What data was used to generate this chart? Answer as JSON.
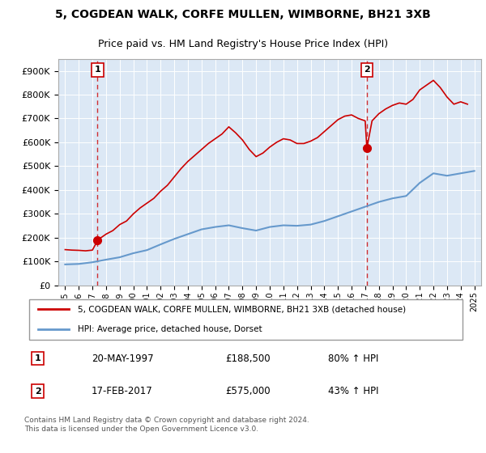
{
  "title1": "5, COGDEAN WALK, CORFE MULLEN, WIMBORNE, BH21 3XB",
  "title2": "Price paid vs. HM Land Registry's House Price Index (HPI)",
  "legend_line1": "5, COGDEAN WALK, CORFE MULLEN, WIMBORNE, BH21 3XB (detached house)",
  "legend_line2": "HPI: Average price, detached house, Dorset",
  "annotation1_label": "1",
  "annotation1_date": "20-MAY-1997",
  "annotation1_price": "£188,500",
  "annotation1_hpi": "80% ↑ HPI",
  "annotation2_label": "2",
  "annotation2_date": "17-FEB-2017",
  "annotation2_price": "£575,000",
  "annotation2_hpi": "43% ↑ HPI",
  "footnote": "Contains HM Land Registry data © Crown copyright and database right 2024.\nThis data is licensed under the Open Government Licence v3.0.",
  "price_color": "#cc0000",
  "hpi_color": "#6699cc",
  "vline_color": "#cc0000",
  "dot_color": "#cc0000",
  "background_color": "#e8f0f8",
  "plot_bg_color": "#dce8f5",
  "ylim": [
    0,
    950000
  ],
  "yticks": [
    0,
    100000,
    200000,
    300000,
    400000,
    500000,
    600000,
    700000,
    800000,
    900000
  ],
  "xlabel_years": [
    "1995",
    "1996",
    "1997",
    "1998",
    "1999",
    "2000",
    "2001",
    "2002",
    "2003",
    "2004",
    "2005",
    "2006",
    "2007",
    "2008",
    "2009",
    "2010",
    "2011",
    "2012",
    "2013",
    "2014",
    "2015",
    "2016",
    "2017",
    "2018",
    "2019",
    "2020",
    "2021",
    "2022",
    "2023",
    "2024",
    "2025"
  ],
  "sale1_year": 1997.38,
  "sale1_price": 188500,
  "sale2_year": 2017.12,
  "sale2_price": 575000,
  "hpi_years": [
    1995,
    1996,
    1997,
    1998,
    1999,
    2000,
    2001,
    2002,
    2003,
    2004,
    2005,
    2006,
    2007,
    2008,
    2009,
    2010,
    2011,
    2012,
    2013,
    2014,
    2015,
    2016,
    2017,
    2018,
    2019,
    2020,
    2021,
    2022,
    2023,
    2024,
    2025
  ],
  "hpi_values": [
    88000,
    90000,
    97000,
    108000,
    118000,
    135000,
    148000,
    172000,
    195000,
    215000,
    235000,
    245000,
    252000,
    240000,
    230000,
    245000,
    252000,
    250000,
    255000,
    270000,
    290000,
    310000,
    330000,
    350000,
    365000,
    375000,
    430000,
    470000,
    460000,
    470000,
    480000
  ],
  "price_years": [
    1995.0,
    1995.5,
    1996.0,
    1996.5,
    1997.0,
    1997.38,
    1997.5,
    1998.0,
    1998.5,
    1999.0,
    1999.5,
    2000.0,
    2000.5,
    2001.0,
    2001.5,
    2002.0,
    2002.5,
    2003.0,
    2003.5,
    2004.0,
    2004.5,
    2005.0,
    2005.5,
    2006.0,
    2006.5,
    2007.0,
    2007.5,
    2008.0,
    2008.5,
    2009.0,
    2009.5,
    2010.0,
    2010.5,
    2011.0,
    2011.5,
    2012.0,
    2012.5,
    2013.0,
    2013.5,
    2014.0,
    2014.5,
    2015.0,
    2015.5,
    2016.0,
    2016.5,
    2017.0,
    2017.12,
    2017.5,
    2018.0,
    2018.5,
    2019.0,
    2019.5,
    2020.0,
    2020.5,
    2021.0,
    2021.5,
    2022.0,
    2022.5,
    2023.0,
    2023.5,
    2024.0,
    2024.5
  ],
  "price_values": [
    150000,
    148000,
    147000,
    145000,
    148000,
    188500,
    195000,
    215000,
    230000,
    255000,
    270000,
    300000,
    325000,
    345000,
    365000,
    395000,
    420000,
    455000,
    490000,
    520000,
    545000,
    570000,
    595000,
    615000,
    635000,
    665000,
    640000,
    610000,
    570000,
    540000,
    555000,
    580000,
    600000,
    615000,
    610000,
    595000,
    595000,
    605000,
    620000,
    645000,
    670000,
    695000,
    710000,
    715000,
    700000,
    690000,
    575000,
    690000,
    720000,
    740000,
    755000,
    765000,
    760000,
    780000,
    820000,
    840000,
    860000,
    830000,
    790000,
    760000,
    770000,
    760000
  ]
}
